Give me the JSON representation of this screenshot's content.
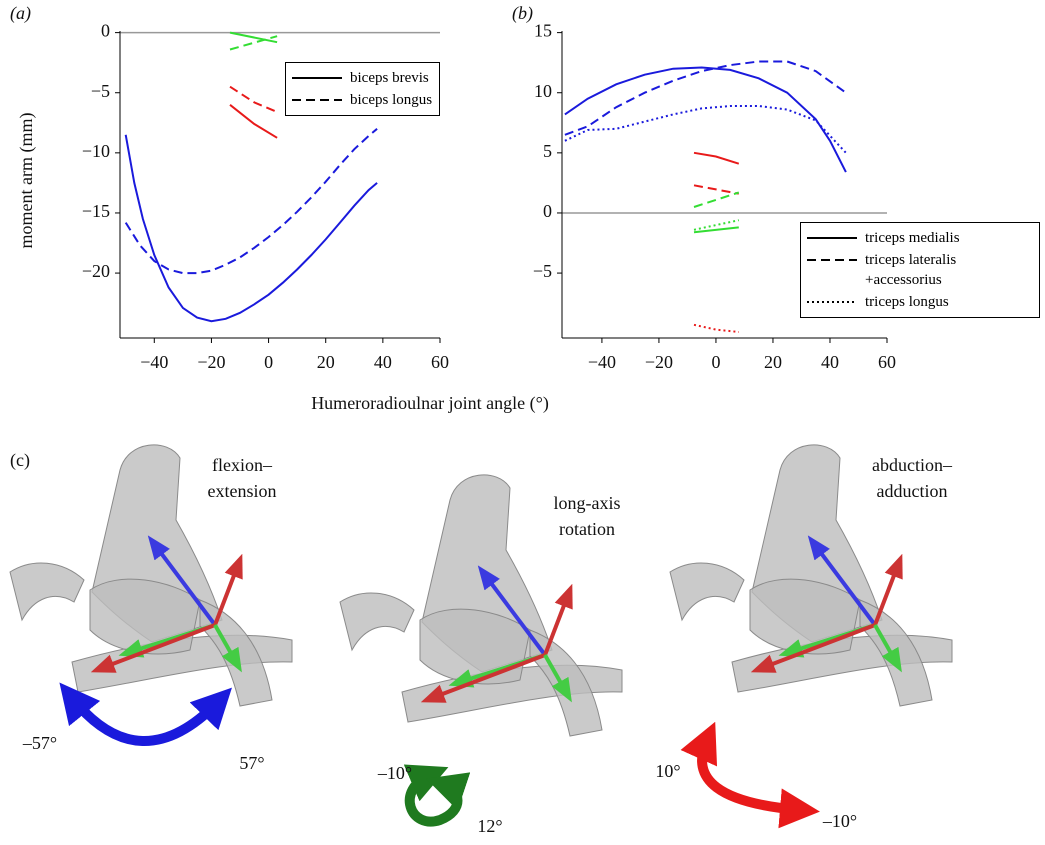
{
  "common_xlabel": "Humeroradioulnar joint angle (°)",
  "chart_data": [
    {
      "type": "line",
      "panel_label": "(a)",
      "ylabel": "moment arm (mm)",
      "xlim": [
        -52,
        60
      ],
      "ylim": [
        -25.4,
        0.8
      ],
      "xticks": [
        {
          "value": -40,
          "label": "−40"
        },
        {
          "value": -20,
          "label": "−20"
        },
        0,
        20,
        40,
        60
      ],
      "yticks": [
        0,
        {
          "value": -5,
          "label": "−5"
        },
        {
          "value": -10,
          "label": "−10"
        },
        {
          "value": -15,
          "label": "−15"
        },
        {
          "value": -20,
          "label": "−20"
        }
      ],
      "zero_line": true,
      "legend": "upper right",
      "series": [
        {
          "name": "biceps brevis",
          "color": "#1a1adc",
          "dash": "solid",
          "x": [
            -50,
            -47,
            -44,
            -40,
            -35,
            -30,
            -25,
            -20,
            -15,
            -10,
            -5,
            0,
            5,
            10,
            15,
            20,
            25,
            30,
            35,
            38
          ],
          "values": [
            -8.5,
            -12.5,
            -15.5,
            -18.5,
            -21.2,
            -22.9,
            -23.7,
            -24,
            -23.8,
            -23.3,
            -22.6,
            -21.8,
            -20.8,
            -19.7,
            -18.5,
            -17.2,
            -15.8,
            -14.4,
            -13.1,
            -12.5
          ]
        },
        {
          "name": "biceps longus",
          "color": "#1a1adc",
          "dash": "dashed",
          "x": [
            -50,
            -45,
            -40,
            -35,
            -30,
            -25,
            -20,
            -15,
            -10,
            -5,
            0,
            5,
            10,
            15,
            20,
            25,
            30,
            35,
            38
          ],
          "values": [
            -15.8,
            -17.7,
            -19,
            -19.7,
            -20,
            -20,
            -19.8,
            -19.3,
            -18.7,
            -17.9,
            -17,
            -16,
            -14.9,
            -13.7,
            -12.4,
            -11,
            -9.7,
            -8.6,
            -8
          ]
        },
        {
          "color": "#33dd33",
          "dash": "solid",
          "x": [
            -13.5,
            3
          ],
          "values": [
            0,
            -0.8
          ]
        },
        {
          "color": "#33dd33",
          "dash": "dashed",
          "x": [
            -13.5,
            3
          ],
          "values": [
            -1.4,
            -0.3
          ]
        },
        {
          "color": "#e81a1a",
          "dash": "solid",
          "x": [
            -13.5,
            -5,
            3
          ],
          "values": [
            -6,
            -7.6,
            -8.75
          ]
        },
        {
          "color": "#e81a1a",
          "dash": "dashed",
          "x": [
            -13.5,
            -5,
            3
          ],
          "values": [
            -4.5,
            -5.8,
            -6.6
          ]
        }
      ]
    },
    {
      "type": "line",
      "panel_label": "(b)",
      "xlim": [
        -54,
        60
      ],
      "ylim": [
        -10.4,
        15.8
      ],
      "xticks": [
        {
          "value": -40,
          "label": "−40"
        },
        {
          "value": -20,
          "label": "−20"
        },
        0,
        20,
        40,
        60
      ],
      "yticks": [
        15,
        10,
        5,
        0,
        {
          "value": -5,
          "label": "−5"
        }
      ],
      "zero_line": true,
      "legend": "lower right",
      "series": [
        {
          "name": "triceps medialis",
          "color": "#1a1adc",
          "dash": "solid",
          "x": [
            -53,
            -45,
            -35,
            -25,
            -15,
            -5,
            5,
            15,
            25,
            35,
            40,
            45.6
          ],
          "values": [
            8.2,
            9.5,
            10.7,
            11.5,
            12,
            12.1,
            11.9,
            11.2,
            10,
            7.8,
            6,
            3.4
          ]
        },
        {
          "name": "triceps lateralis +accessorius",
          "color": "#1a1adc",
          "dash": "dashed",
          "x": [
            -53,
            -45,
            -35,
            -25,
            -15,
            -5,
            5,
            15,
            25,
            35,
            45.6
          ],
          "values": [
            6.5,
            7.2,
            8.8,
            10,
            11,
            11.8,
            12.3,
            12.6,
            12.6,
            11.8,
            10
          ]
        },
        {
          "name": "triceps longus",
          "color": "#1a1adc",
          "dash": "dotted",
          "x": [
            -53,
            -45,
            -35,
            -25,
            -15,
            -5,
            5,
            15,
            25,
            35,
            45.6
          ],
          "values": [
            6,
            6.9,
            7,
            7.6,
            8.2,
            8.7,
            8.9,
            8.9,
            8.6,
            7.7,
            5
          ]
        },
        {
          "color": "#e81a1a",
          "dash": "solid",
          "x": [
            -7.7,
            0,
            8
          ],
          "values": [
            5,
            4.7,
            4.1
          ]
        },
        {
          "color": "#e81a1a",
          "dash": "dashed",
          "x": [
            -7.7,
            8
          ],
          "values": [
            2.3,
            1.6
          ]
        },
        {
          "color": "#33dd33",
          "dash": "dashed",
          "x": [
            -7.7,
            8
          ],
          "values": [
            0.5,
            1.7
          ]
        },
        {
          "color": "#33dd33",
          "dash": "solid",
          "x": [
            -7.7,
            8
          ],
          "values": [
            -1.6,
            -1.2
          ]
        },
        {
          "color": "#33dd33",
          "dash": "dotted",
          "x": [
            -7.7,
            8
          ],
          "values": [
            -1.4,
            -0.6
          ]
        },
        {
          "color": "#e81a1a",
          "dash": "dotted",
          "x": [
            -7.7,
            0,
            8
          ],
          "values": [
            -9.3,
            -9.7,
            -9.9
          ]
        }
      ]
    }
  ],
  "panel_c": {
    "label": "(c)",
    "views": [
      {
        "title": [
          "flexion–",
          "extension"
        ],
        "color": "#1a1adc",
        "min_label": "–57°",
        "max_label": "57°"
      },
      {
        "title": [
          "long-axis",
          "rotation"
        ],
        "color": "#1f7a1f",
        "min_label": "–10°",
        "max_label": "12°"
      },
      {
        "title": [
          "abduction–",
          "adduction"
        ],
        "color": "#e81a1a",
        "min_label": "10°",
        "max_label": "–10°"
      }
    ]
  }
}
